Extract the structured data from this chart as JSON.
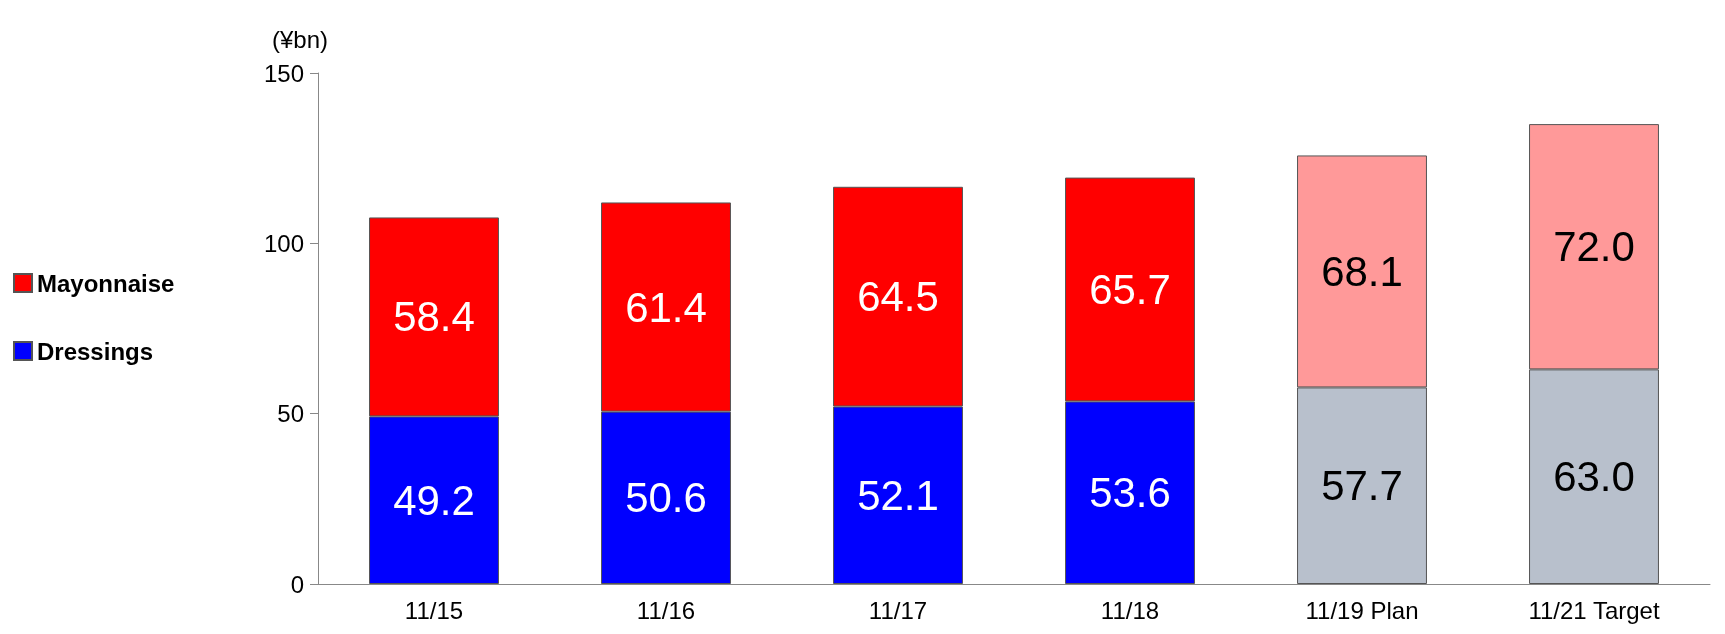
{
  "chart_data": {
    "type": "bar",
    "stacked": true,
    "ylabel": "(¥bn)",
    "categories": [
      "11/15",
      "11/16",
      "11/17",
      "11/18",
      "11/19 Plan",
      "11/21 Target"
    ],
    "series": [
      {
        "name": "Dressings",
        "color": "#0000ff",
        "colors": [
          "#0000ff",
          "#0000ff",
          "#0000ff",
          "#0000ff",
          "#b8c0cc",
          "#b8c0cc"
        ],
        "values": [
          49.2,
          50.6,
          52.1,
          53.6,
          57.7,
          63.0
        ],
        "value_labels": [
          "49.2",
          "50.6",
          "52.1",
          "53.6",
          "57.7",
          "63.0"
        ]
      },
      {
        "name": "Mayonnaise",
        "color": "#ff0000",
        "colors": [
          "#ff0000",
          "#ff0000",
          "#ff0000",
          "#ff0000",
          "#ff9999",
          "#ff9999"
        ],
        "values": [
          58.4,
          61.4,
          64.5,
          65.7,
          68.1,
          72.0
        ],
        "value_labels": [
          "58.4",
          "61.4",
          "64.5",
          "65.7",
          "68.1",
          "72.0"
        ]
      }
    ],
    "ylim": [
      0,
      150
    ],
    "yticks": [
      0,
      50,
      100,
      150
    ],
    "grid": false,
    "legend": "left"
  }
}
